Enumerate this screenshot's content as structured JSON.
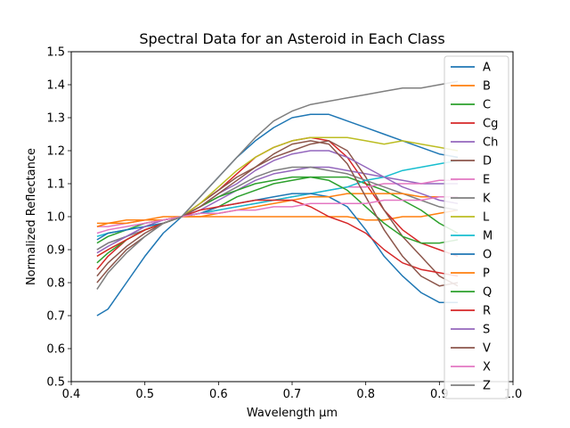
{
  "chart_data": {
    "type": "line",
    "title": "Spectral Data for an Asteroid in Each Class",
    "xlabel": "Wavelength µm",
    "ylabel": "Normalized Reflectance",
    "xlim": [
      0.4,
      1.0
    ],
    "ylim": [
      0.5,
      1.5
    ],
    "xticks": [
      "0.4",
      "0.5",
      "0.6",
      "0.7",
      "0.8",
      "0.9",
      "1.0"
    ],
    "yticks": [
      "0.5",
      "0.6",
      "0.7",
      "0.8",
      "0.9",
      "1.0",
      "1.1",
      "1.2",
      "1.3",
      "1.4",
      "1.5"
    ],
    "grid": false,
    "legend_position": "upper-right",
    "x": [
      0.435,
      0.45,
      0.475,
      0.5,
      0.525,
      0.55,
      0.575,
      0.6,
      0.625,
      0.65,
      0.675,
      0.7,
      0.725,
      0.75,
      0.775,
      0.8,
      0.825,
      0.85,
      0.875,
      0.9,
      0.925
    ],
    "series": [
      {
        "name": "A",
        "color": "#1f77b4",
        "values": [
          0.7,
          0.72,
          0.8,
          0.88,
          0.95,
          1.0,
          1.06,
          1.12,
          1.18,
          1.23,
          1.27,
          1.3,
          1.31,
          1.31,
          1.29,
          1.27,
          1.25,
          1.23,
          1.21,
          1.19,
          1.18
        ]
      },
      {
        "name": "B",
        "color": "#ff7f0e",
        "values": [
          0.98,
          0.98,
          0.99,
          0.99,
          1.0,
          1.0,
          1.0,
          1.0,
          1.0,
          1.0,
          1.0,
          1.0,
          1.0,
          1.0,
          1.0,
          0.99,
          0.99,
          1.0,
          1.0,
          1.01,
          1.02
        ]
      },
      {
        "name": "C",
        "color": "#2ca02c",
        "values": [
          0.92,
          0.94,
          0.96,
          0.98,
          0.99,
          1.0,
          1.01,
          1.03,
          1.06,
          1.08,
          1.1,
          1.11,
          1.12,
          1.12,
          1.12,
          1.1,
          1.08,
          1.05,
          1.02,
          0.98,
          0.95
        ]
      },
      {
        "name": "Cg",
        "color": "#d62728",
        "values": [
          0.84,
          0.88,
          0.93,
          0.96,
          0.98,
          1.0,
          1.04,
          1.08,
          1.13,
          1.18,
          1.21,
          1.23,
          1.24,
          1.23,
          1.18,
          1.1,
          1.02,
          0.96,
          0.92,
          0.9,
          0.88
        ]
      },
      {
        "name": "Ch",
        "color": "#9467bd",
        "values": [
          0.9,
          0.92,
          0.94,
          0.97,
          0.99,
          1.0,
          1.02,
          1.05,
          1.08,
          1.11,
          1.13,
          1.14,
          1.15,
          1.15,
          1.14,
          1.13,
          1.12,
          1.11,
          1.1,
          1.1,
          1.1
        ]
      },
      {
        "name": "D",
        "color": "#8c564b",
        "values": [
          0.8,
          0.84,
          0.9,
          0.94,
          0.98,
          1.0,
          1.04,
          1.08,
          1.12,
          1.15,
          1.18,
          1.2,
          1.22,
          1.23,
          1.2,
          1.12,
          1.02,
          0.94,
          0.88,
          0.82,
          0.79
        ]
      },
      {
        "name": "E",
        "color": "#e377c2",
        "values": [
          0.97,
          0.97,
          0.98,
          0.99,
          0.99,
          1.0,
          1.01,
          1.02,
          1.03,
          1.04,
          1.05,
          1.06,
          1.07,
          1.08,
          1.09,
          1.09,
          1.1,
          1.1,
          1.1,
          1.11,
          1.11
        ]
      },
      {
        "name": "K",
        "color": "#7f7f7f",
        "values": [
          0.9,
          0.92,
          0.94,
          0.96,
          0.98,
          1.0,
          1.03,
          1.06,
          1.09,
          1.12,
          1.14,
          1.15,
          1.15,
          1.14,
          1.13,
          1.11,
          1.09,
          1.07,
          1.05,
          1.03,
          1.02
        ]
      },
      {
        "name": "L",
        "color": "#bcbd22",
        "values": [
          0.88,
          0.9,
          0.93,
          0.96,
          0.98,
          1.0,
          1.04,
          1.09,
          1.14,
          1.18,
          1.21,
          1.23,
          1.24,
          1.24,
          1.24,
          1.23,
          1.22,
          1.23,
          1.22,
          1.21,
          1.2
        ]
      },
      {
        "name": "M",
        "color": "#17becf",
        "values": [
          0.94,
          0.95,
          0.96,
          0.97,
          0.98,
          1.0,
          1.01,
          1.02,
          1.03,
          1.04,
          1.05,
          1.06,
          1.07,
          1.08,
          1.09,
          1.11,
          1.12,
          1.14,
          1.15,
          1.16,
          1.17
        ]
      },
      {
        "name": "O",
        "color": "#1f77b4",
        "values": [
          0.93,
          0.95,
          0.96,
          0.97,
          0.98,
          1.0,
          1.01,
          1.03,
          1.04,
          1.05,
          1.06,
          1.07,
          1.07,
          1.06,
          1.03,
          0.96,
          0.88,
          0.82,
          0.77,
          0.74,
          0.74
        ]
      },
      {
        "name": "P",
        "color": "#ff7f0e",
        "values": [
          0.97,
          0.98,
          0.98,
          0.99,
          0.99,
          1.0,
          1.0,
          1.01,
          1.02,
          1.03,
          1.04,
          1.05,
          1.06,
          1.06,
          1.07,
          1.07,
          1.07,
          1.07,
          1.06,
          1.06,
          1.06
        ]
      },
      {
        "name": "Q",
        "color": "#2ca02c",
        "values": [
          0.86,
          0.89,
          0.93,
          0.96,
          0.98,
          1.0,
          1.03,
          1.06,
          1.08,
          1.1,
          1.11,
          1.12,
          1.12,
          1.11,
          1.08,
          1.03,
          0.98,
          0.94,
          0.92,
          0.92,
          0.93
        ]
      },
      {
        "name": "R",
        "color": "#d62728",
        "values": [
          0.88,
          0.9,
          0.93,
          0.96,
          0.98,
          1.0,
          1.02,
          1.03,
          1.04,
          1.05,
          1.05,
          1.05,
          1.03,
          1.0,
          0.98,
          0.95,
          0.9,
          0.86,
          0.84,
          0.83,
          0.82
        ]
      },
      {
        "name": "S",
        "color": "#9467bd",
        "values": [
          0.89,
          0.91,
          0.94,
          0.97,
          0.99,
          1.0,
          1.03,
          1.07,
          1.1,
          1.14,
          1.17,
          1.19,
          1.2,
          1.2,
          1.18,
          1.15,
          1.12,
          1.09,
          1.07,
          1.05,
          1.04
        ]
      },
      {
        "name": "V",
        "color": "#8c564b",
        "values": [
          0.82,
          0.86,
          0.91,
          0.95,
          0.98,
          1.0,
          1.03,
          1.07,
          1.11,
          1.15,
          1.19,
          1.22,
          1.23,
          1.22,
          1.16,
          1.06,
          0.96,
          0.88,
          0.82,
          0.79,
          0.8
        ]
      },
      {
        "name": "X",
        "color": "#e377c2",
        "values": [
          0.95,
          0.96,
          0.97,
          0.98,
          0.99,
          1.0,
          1.01,
          1.01,
          1.02,
          1.02,
          1.03,
          1.03,
          1.04,
          1.04,
          1.04,
          1.04,
          1.05,
          1.05,
          1.05,
          1.06,
          1.06
        ]
      },
      {
        "name": "Z",
        "color": "#7f7f7f",
        "values": [
          0.78,
          0.83,
          0.89,
          0.94,
          0.98,
          1.0,
          1.06,
          1.12,
          1.18,
          1.24,
          1.29,
          1.32,
          1.34,
          1.35,
          1.36,
          1.37,
          1.38,
          1.39,
          1.39,
          1.4,
          1.41
        ]
      }
    ]
  }
}
